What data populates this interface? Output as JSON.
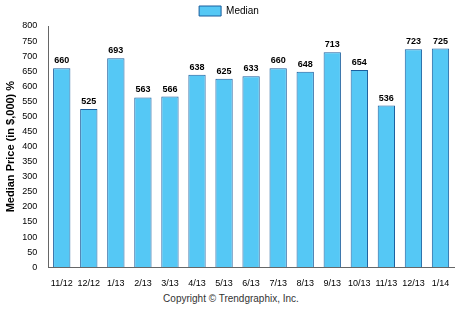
{
  "chart_data": {
    "type": "bar",
    "y_label": "Median Price (in $,000) %",
    "annotations": [
      "Copyright © Trendgraphix, Inc."
    ],
    "categories": [
      "11/12",
      "12/12",
      "1/13",
      "2/13",
      "3/13",
      "4/13",
      "5/13",
      "6/13",
      "7/13",
      "8/13",
      "9/13",
      "10/13",
      "11/13",
      "12/13",
      "1/14"
    ],
    "series": [
      {
        "name": "Median",
        "color": "#55c8f5",
        "values": [
          660,
          525,
          693,
          563,
          566,
          638,
          625,
          633,
          660,
          648,
          713,
          654,
          536,
          723,
          725
        ]
      }
    ],
    "ylim": [
      0,
      800
    ],
    "yticks": [
      0,
      50,
      100,
      150,
      200,
      250,
      300,
      350,
      400,
      450,
      500,
      550,
      600,
      650,
      700,
      750,
      800
    ],
    "grid": false,
    "legend": "top",
    "data_labels": true
  }
}
